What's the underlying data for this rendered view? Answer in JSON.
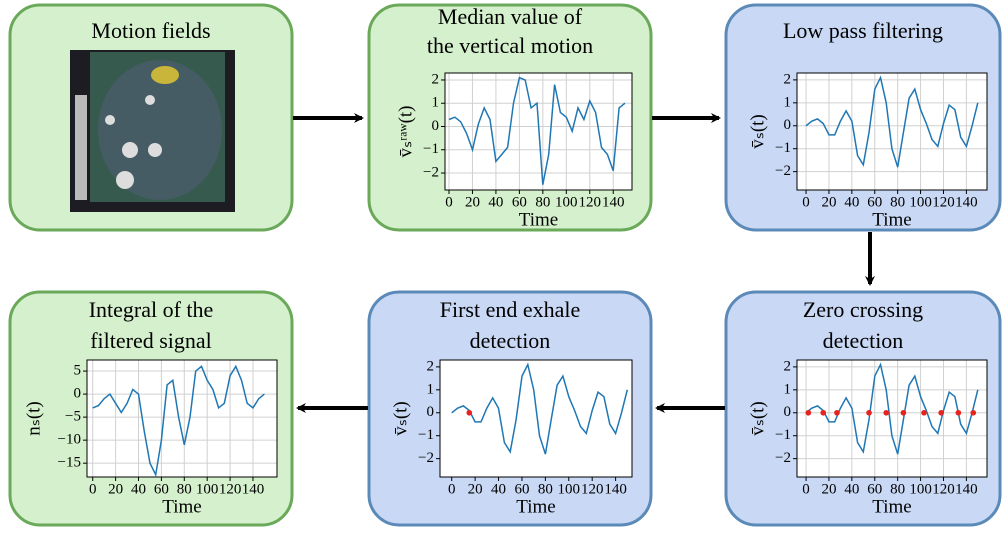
{
  "nodes": [
    {
      "label": [
        "Motion fields"
      ]
    },
    {
      "label": [
        "Median value of",
        "the vertical motion"
      ],
      "plot": {
        "type": "line",
        "xlabel": "Time",
        "ylabel": "v̄ₛʳᵃʷ(t)",
        "x": [
          0,
          5,
          10,
          15,
          20,
          25,
          30,
          35,
          40,
          45,
          50,
          55,
          60,
          65,
          70,
          75,
          80,
          85,
          90,
          95,
          100,
          105,
          110,
          115,
          120,
          125,
          130,
          135,
          140,
          145,
          150
        ],
        "values": [
          0.3,
          0.4,
          0.2,
          -0.3,
          -1.0,
          0.1,
          0.8,
          0.3,
          -1.5,
          -1.2,
          -0.9,
          1.0,
          2.1,
          2.0,
          0.8,
          1.0,
          -2.5,
          -1.2,
          1.8,
          0.6,
          0.4,
          -0.2,
          0.8,
          0.3,
          1.1,
          0.6,
          -0.9,
          -1.2,
          -1.9,
          0.8,
          1.0
        ],
        "color": "#1f77b4",
        "grid": true,
        "xlim": [
          -3.4,
          156
        ],
        "ylim": [
          -2.73,
          2.3
        ],
        "xticks": [
          0,
          20,
          40,
          60,
          80,
          100,
          120,
          140
        ],
        "yticks": [
          {
            "value": -2,
            "label": "−2"
          },
          {
            "value": -1,
            "label": "−1"
          },
          0,
          1,
          2
        ]
      }
    },
    {
      "label": [
        "Low pass filtering"
      ],
      "plot": {
        "type": "line",
        "xlabel": "Time",
        "ylabel": "v̄ₛ(t)",
        "x": [
          0,
          5,
          10,
          15,
          20,
          25,
          30,
          35,
          40,
          45,
          50,
          55,
          60,
          65,
          70,
          75,
          80,
          85,
          90,
          95,
          100,
          105,
          110,
          115,
          120,
          125,
          130,
          135,
          140,
          145,
          150
        ],
        "values": [
          0,
          0.2,
          0.3,
          0.1,
          -0.4,
          -0.4,
          0.2,
          0.65,
          0.2,
          -1.3,
          -1.7,
          -0.3,
          1.6,
          2.1,
          1.0,
          -1.0,
          -1.8,
          -0.3,
          1.2,
          1.6,
          0.7,
          0.1,
          -0.6,
          -0.9,
          0.1,
          0.9,
          0.7,
          -0.5,
          -0.9,
          0.0,
          1.0
        ],
        "color": "#1f77b4",
        "grid": true,
        "xlim": [
          -7.9,
          158
        ],
        "ylim": [
          -2.8,
          2.3
        ],
        "xticks": [
          0,
          20,
          40,
          60,
          80,
          100,
          120,
          140
        ],
        "yticks": [
          {
            "value": -2,
            "label": "−2"
          },
          {
            "value": -1,
            "label": "−1"
          },
          0,
          1,
          2
        ]
      }
    },
    {
      "label": [
        "Zero crossing",
        "detection"
      ],
      "plot": {
        "type": "line",
        "xlabel": "Time",
        "ylabel": "v̄ₛ(t)",
        "x": [
          0,
          5,
          10,
          15,
          20,
          25,
          30,
          35,
          40,
          45,
          50,
          55,
          60,
          65,
          70,
          75,
          80,
          85,
          90,
          95,
          100,
          105,
          110,
          115,
          120,
          125,
          130,
          135,
          140,
          145,
          150
        ],
        "values": [
          0,
          0.2,
          0.3,
          0.1,
          -0.4,
          -0.4,
          0.2,
          0.65,
          0.2,
          -1.3,
          -1.7,
          -0.3,
          1.6,
          2.1,
          1.0,
          -1.0,
          -1.8,
          -0.3,
          1.2,
          1.6,
          0.7,
          0.1,
          -0.6,
          -0.9,
          0.1,
          0.9,
          0.7,
          -0.5,
          -0.9,
          0.0,
          1.0
        ],
        "color": "#1f77b4",
        "grid": true,
        "xlim": [
          -7.9,
          158
        ],
        "ylim": [
          -2.8,
          2.3
        ],
        "xticks": [
          0,
          20,
          40,
          60,
          80,
          100,
          120,
          140
        ],
        "yticks": [
          {
            "value": -2,
            "label": "−2"
          },
          {
            "value": -1,
            "label": "−1"
          },
          0,
          1,
          2
        ],
        "markers": {
          "color": "#e8231d",
          "x": [
            2,
            15,
            27,
            55,
            70,
            85,
            103,
            118,
            133,
            146
          ],
          "values": [
            0,
            0,
            0,
            0,
            0,
            0,
            0,
            0,
            0,
            0
          ]
        }
      }
    },
    {
      "label": [
        "First end exhale",
        "detection"
      ],
      "plot": {
        "type": "line",
        "xlabel": "Time",
        "ylabel": "v̄ₛ(t)",
        "x": [
          0,
          5,
          10,
          15,
          20,
          25,
          30,
          35,
          40,
          45,
          50,
          55,
          60,
          65,
          70,
          75,
          80,
          85,
          90,
          95,
          100,
          105,
          110,
          115,
          120,
          125,
          130,
          135,
          140,
          145,
          150
        ],
        "values": [
          0,
          0.2,
          0.3,
          0.1,
          -0.4,
          -0.4,
          0.2,
          0.65,
          0.2,
          -1.3,
          -1.7,
          -0.3,
          1.6,
          2.1,
          1.0,
          -1.0,
          -1.8,
          -0.3,
          1.2,
          1.6,
          0.7,
          0.1,
          -0.6,
          -0.9,
          0.1,
          0.9,
          0.7,
          -0.5,
          -0.9,
          0.0,
          1.0
        ],
        "color": "#1f77b4",
        "grid": false,
        "xlim": [
          -10,
          154
        ],
        "ylim": [
          -2.8,
          2.3
        ],
        "xticks": [
          0,
          20,
          40,
          60,
          80,
          100,
          120,
          140
        ],
        "yticks": [
          {
            "value": -2,
            "label": "−2"
          },
          {
            "value": -1,
            "label": "−1"
          },
          0,
          1,
          2
        ],
        "markers": {
          "color": "#e8231d",
          "x": [
            15
          ],
          "values": [
            0
          ]
        }
      }
    },
    {
      "label": [
        "Integral of the",
        "filtered signal"
      ],
      "plot": {
        "type": "line",
        "xlabel": "Time",
        "ylabel": "nₛ(t)",
        "x": [
          0,
          5,
          10,
          15,
          20,
          25,
          30,
          35,
          40,
          45,
          50,
          55,
          60,
          65,
          70,
          75,
          80,
          85,
          90,
          95,
          100,
          105,
          110,
          115,
          120,
          125,
          130,
          135,
          140,
          145,
          150
        ],
        "values": [
          -3,
          -2.5,
          -1,
          0,
          -2,
          -4,
          -2,
          1,
          0,
          -8,
          -15,
          -17.5,
          -10,
          2,
          3,
          -5,
          -11,
          -5,
          5,
          6,
          3,
          1,
          -3,
          -2,
          4,
          6,
          3,
          -2,
          -3,
          -1,
          0
        ],
        "color": "#1f77b4",
        "grid": true,
        "xlim": [
          -5,
          161
        ],
        "ylim": [
          -18,
          7.4
        ],
        "xticks": [
          0,
          20,
          40,
          60,
          80,
          100,
          120,
          140
        ],
        "yticks": [
          {
            "value": -15,
            "label": "−15"
          },
          {
            "value": -10,
            "label": "−10"
          },
          {
            "value": -5,
            "label": "−5"
          },
          0,
          5
        ]
      }
    }
  ]
}
